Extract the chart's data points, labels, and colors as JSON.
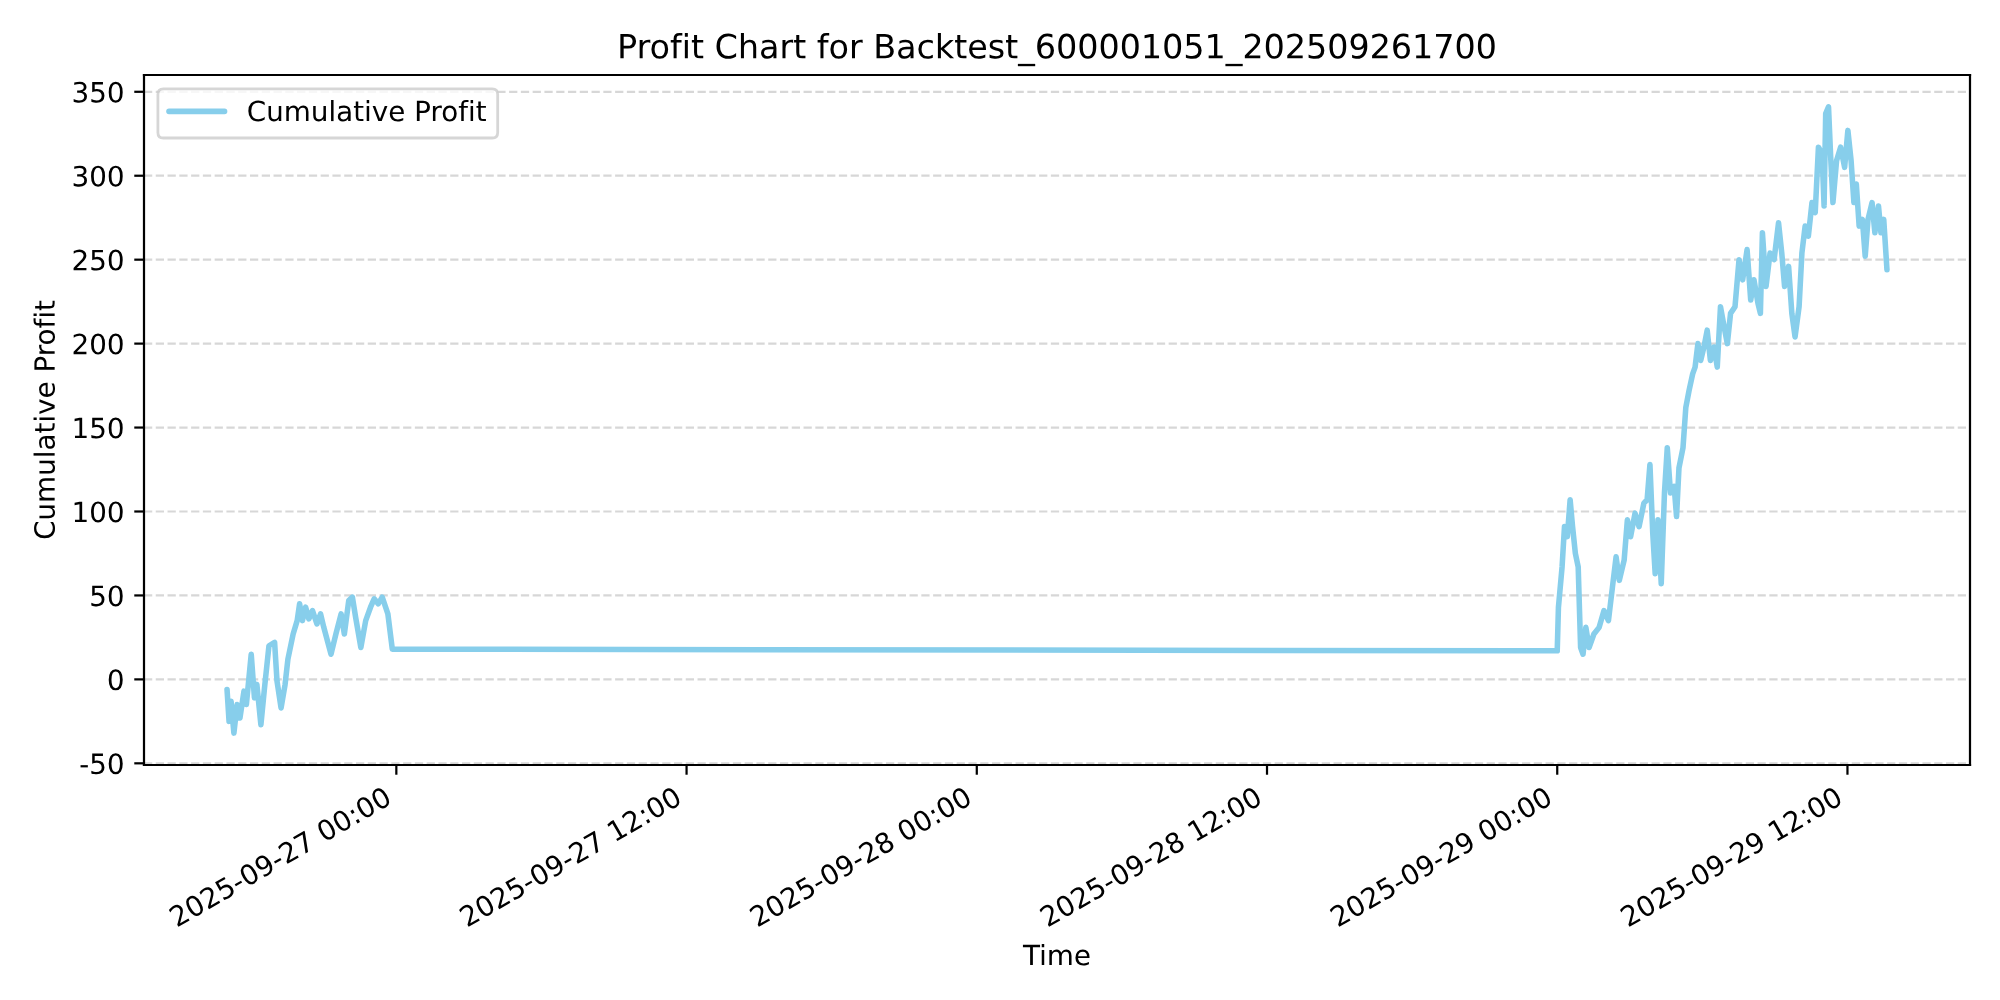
{
  "chart_data": {
    "type": "line",
    "title": "Profit Chart for Backtest_600001051_202509261700",
    "xlabel": "Time",
    "ylabel": "Cumulative Profit",
    "x": [
      "2025-09-26T17:00",
      "2025-09-26T17:05",
      "2025-09-26T17:10",
      "2025-09-26T17:17",
      "2025-09-26T17:25",
      "2025-09-26T17:32",
      "2025-09-26T17:42",
      "2025-09-26T17:48",
      "2025-09-26T18:00",
      "2025-09-26T18:08",
      "2025-09-26T18:14",
      "2025-09-26T18:24",
      "2025-09-26T18:33",
      "2025-09-26T18:44",
      "2025-09-26T18:58",
      "2025-09-26T19:04",
      "2025-09-26T19:14",
      "2025-09-26T19:24",
      "2025-09-26T19:31",
      "2025-09-26T19:44",
      "2025-09-26T19:54",
      "2025-09-26T20:00",
      "2025-09-26T20:07",
      "2025-09-26T20:15",
      "2025-09-26T20:23",
      "2025-09-26T20:32",
      "2025-09-26T20:43",
      "2025-09-26T20:52",
      "2025-09-26T21:00",
      "2025-09-26T21:18",
      "2025-09-26T21:30",
      "2025-09-26T21:43",
      "2025-09-26T21:51",
      "2025-09-26T22:02",
      "2025-09-26T22:11",
      "2025-09-26T22:19",
      "2025-09-26T22:32",
      "2025-09-26T22:44",
      "2025-09-26T22:56",
      "2025-09-26T23:05",
      "2025-09-26T23:15",
      "2025-09-26T23:25",
      "2025-09-26T23:39",
      "2025-09-26T23:50",
      "2025-09-29T00:00",
      "2025-09-29T00:03",
      "2025-09-29T00:12",
      "2025-09-29T00:18",
      "2025-09-29T00:25",
      "2025-09-29T00:32",
      "2025-09-29T00:38",
      "2025-09-29T00:45",
      "2025-09-29T00:52",
      "2025-09-29T00:58",
      "2025-09-29T01:04",
      "2025-09-29T01:11",
      "2025-09-29T01:19",
      "2025-09-29T01:31",
      "2025-09-29T01:44",
      "2025-09-29T01:56",
      "2025-09-29T02:07",
      "2025-09-29T02:17",
      "2025-09-29T02:26",
      "2025-09-29T02:34",
      "2025-09-29T02:46",
      "2025-09-29T02:54",
      "2025-09-29T03:02",
      "2025-09-29T03:13",
      "2025-09-29T03:23",
      "2025-09-29T03:35",
      "2025-09-29T03:43",
      "2025-09-29T03:50",
      "2025-09-29T03:57",
      "2025-09-29T04:03",
      "2025-09-29T04:10",
      "2025-09-29T04:18",
      "2025-09-29T04:26",
      "2025-09-29T04:33",
      "2025-09-29T04:41",
      "2025-09-29T04:50",
      "2025-09-29T04:56",
      "2025-09-29T05:02",
      "2025-09-29T05:12",
      "2025-09-29T05:19",
      "2025-09-29T05:27",
      "2025-09-29T05:36",
      "2025-09-29T05:42",
      "2025-09-29T05:49",
      "2025-09-29T05:56",
      "2025-09-29T06:04",
      "2025-09-29T06:12",
      "2025-09-29T06:20",
      "2025-09-29T06:29",
      "2025-09-29T06:37",
      "2025-09-29T06:45",
      "2025-09-29T06:54",
      "2025-09-29T07:02",
      "2025-09-29T07:10",
      "2025-09-29T07:21",
      "2025-09-29T07:31",
      "2025-09-29T07:40",
      "2025-09-29T07:51",
      "2025-09-29T08:00",
      "2025-09-29T08:08",
      "2025-09-29T08:18",
      "2025-09-29T08:24",
      "2025-09-29T08:29",
      "2025-09-29T08:38",
      "2025-09-29T08:48",
      "2025-09-29T08:58",
      "2025-09-29T09:09",
      "2025-09-29T09:17",
      "2025-09-29T09:24",
      "2025-09-29T09:34",
      "2025-09-29T09:42",
      "2025-09-29T09:50",
      "2025-09-29T10:00",
      "2025-09-29T10:07",
      "2025-09-29T10:15",
      "2025-09-29T10:23",
      "2025-09-29T10:32",
      "2025-09-29T10:40",
      "2025-09-29T10:48",
      "2025-09-29T10:57",
      "2025-09-29T11:02",
      "2025-09-29T11:06",
      "2025-09-29T11:13",
      "2025-09-29T11:18",
      "2025-09-29T11:24",
      "2025-09-29T11:33",
      "2025-09-29T11:43",
      "2025-09-29T11:53",
      "2025-09-29T12:01",
      "2025-09-29T12:09",
      "2025-09-29T12:16",
      "2025-09-29T12:22",
      "2025-09-29T12:29",
      "2025-09-29T12:37",
      "2025-09-29T12:44",
      "2025-09-29T12:51",
      "2025-09-29T13:01",
      "2025-09-29T13:08",
      "2025-09-29T13:17",
      "2025-09-29T13:23",
      "2025-09-29T13:30",
      "2025-09-29T13:38"
    ],
    "series": [
      {
        "name": "Cumulative Profit",
        "color": "#87ceeb",
        "values": [
          -6,
          -25,
          -13,
          -32,
          -15,
          -23,
          -7,
          -15,
          15,
          -11,
          -3,
          -27,
          -5,
          20,
          22,
          -1,
          -17,
          -3,
          12,
          27,
          35,
          45,
          35,
          43,
          36,
          41,
          33,
          39,
          31,
          15,
          27,
          39,
          27,
          47,
          49,
          37,
          19,
          35,
          43,
          48,
          45,
          49,
          39,
          18,
          17,
          43,
          67,
          91,
          85,
          107,
          91,
          75,
          67,
          19,
          15,
          31,
          19,
          27,
          31,
          41,
          35,
          55,
          73,
          59,
          71,
          95,
          85,
          99,
          91,
          105,
          107,
          128,
          87,
          63,
          95,
          57,
          111,
          138,
          111,
          115,
          97,
          126,
          138,
          162,
          172,
          182,
          186,
          200,
          190,
          198,
          208,
          190,
          198,
          186,
          222,
          210,
          200,
          218,
          222,
          250,
          238,
          256,
          226,
          238,
          224,
          218,
          266,
          234,
          254,
          250,
          272,
          254,
          234,
          246,
          218,
          204,
          222,
          254,
          270,
          264,
          284,
          278,
          317,
          313,
          282,
          337,
          341,
          313,
          284,
          309,
          317,
          305,
          327,
          309,
          284,
          295,
          270,
          274,
          252,
          274,
          284,
          266,
          282,
          266,
          274,
          244
        ]
      }
    ],
    "xlim": [
      "2025-09-26T13:34",
      "2025-09-29T17:04"
    ],
    "xticks": [
      {
        "value": "2025-09-27T00:00",
        "label": "2025-09-27 00:00"
      },
      {
        "value": "2025-09-27T12:00",
        "label": "2025-09-27 12:00"
      },
      {
        "value": "2025-09-28T00:00",
        "label": "2025-09-28 00:00"
      },
      {
        "value": "2025-09-28T12:00",
        "label": "2025-09-28 12:00"
      },
      {
        "value": "2025-09-29T00:00",
        "label": "2025-09-29 00:00"
      },
      {
        "value": "2025-09-29T12:00",
        "label": "2025-09-29 12:00"
      }
    ],
    "ylim": [
      -51,
      360
    ],
    "yticks": [
      -50,
      0,
      50,
      100,
      150,
      200,
      250,
      300,
      350
    ],
    "grid": "y",
    "legend": "top left",
    "marker": "none",
    "line_style": "solid"
  }
}
